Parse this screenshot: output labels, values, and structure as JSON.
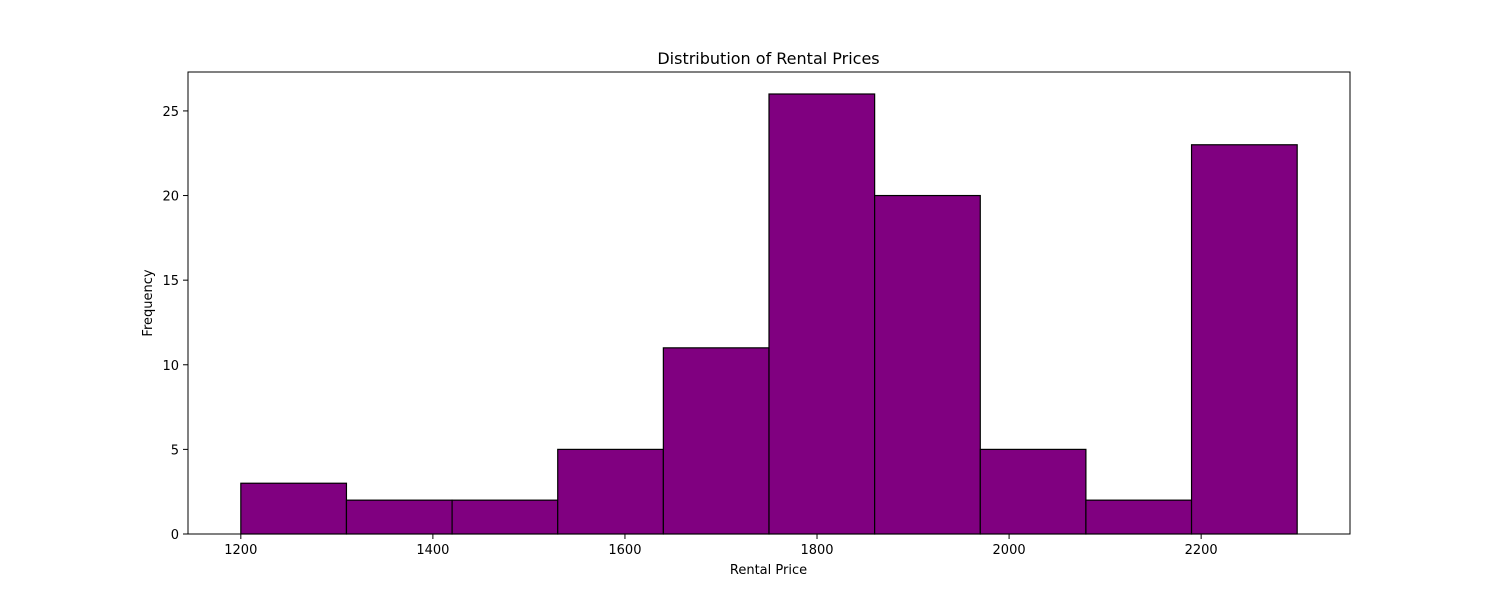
{
  "chart_data": {
    "type": "bar",
    "title": "Distribution of Rental Prices",
    "xlabel": "Rental Price",
    "ylabel": "Frequency",
    "bin_edges": [
      1200,
      1310,
      1420,
      1530,
      1640,
      1750,
      1860,
      1970,
      2080,
      2190,
      2300
    ],
    "values": [
      3,
      2,
      2,
      5,
      11,
      26,
      20,
      5,
      2,
      23
    ],
    "xlim": [
      1145,
      2355
    ],
    "ylim": [
      0,
      27.3
    ],
    "xticks": [
      1200,
      1400,
      1600,
      1800,
      2000,
      2200
    ],
    "yticks": [
      0,
      5,
      10,
      15,
      20,
      25
    ],
    "bar_color": "#800080",
    "edge_color": "#000000",
    "grid": false,
    "legend": "none"
  }
}
